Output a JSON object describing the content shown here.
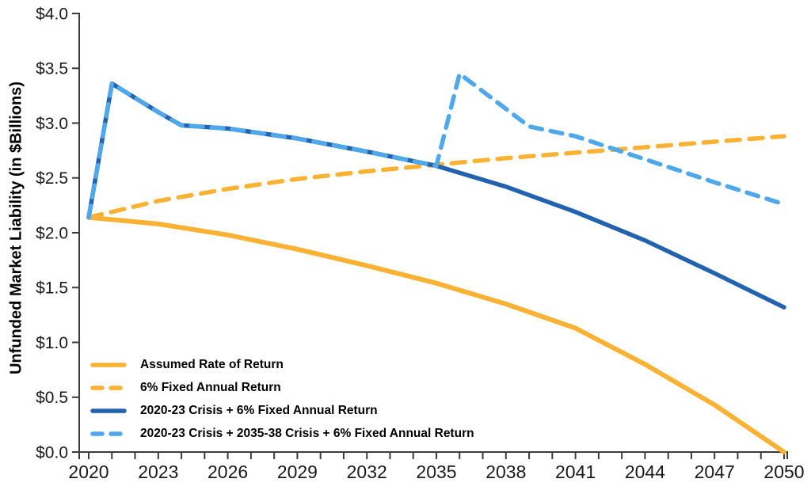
{
  "chart_data": {
    "type": "line",
    "title": "",
    "xlabel": "",
    "ylabel": "Unfunded Market Liability (in $Billions)",
    "x_range": [
      2020,
      2050
    ],
    "ylim": [
      0.0,
      4.0
    ],
    "grid": false,
    "legend_position": "inside lower-left",
    "x_ticks": [
      2020,
      2023,
      2026,
      2029,
      2032,
      2035,
      2038,
      2041,
      2044,
      2047,
      2050
    ],
    "x_tick_labels": [
      "2020",
      "2023",
      "2026",
      "2029",
      "2032",
      "2035",
      "2038",
      "2041",
      "2044",
      "2047",
      "2050"
    ],
    "x_minor_tick_step": 1,
    "y_ticks": [
      0.0,
      0.5,
      1.0,
      1.5,
      2.0,
      2.5,
      3.0,
      3.5,
      4.0
    ],
    "y_tick_labels": [
      "$0.0",
      "$0.5",
      "$1.0",
      "$1.5",
      "$2.0",
      "$2.5",
      "$3.0",
      "$3.5",
      "$4.0"
    ],
    "axis_color": "#3C3C3C",
    "text_color": "#1A1A1A",
    "series": [
      {
        "name": "Assumed Rate of Return",
        "color": "#F9B234",
        "line_style": "solid",
        "points": [
          [
            2020,
            2.14
          ],
          [
            2023,
            2.08
          ],
          [
            2026,
            1.98
          ],
          [
            2029,
            1.85
          ],
          [
            2032,
            1.7
          ],
          [
            2035,
            1.54
          ],
          [
            2038,
            1.35
          ],
          [
            2041,
            1.13
          ],
          [
            2044,
            0.8
          ],
          [
            2047,
            0.43
          ],
          [
            2050,
            0.0
          ]
        ]
      },
      {
        "name": "6% Fixed Annual Return",
        "color": "#F9B234",
        "line_style": "dashed",
        "points": [
          [
            2020,
            2.14
          ],
          [
            2023,
            2.29
          ],
          [
            2026,
            2.4
          ],
          [
            2029,
            2.49
          ],
          [
            2032,
            2.56
          ],
          [
            2035,
            2.62
          ],
          [
            2038,
            2.68
          ],
          [
            2041,
            2.73
          ],
          [
            2044,
            2.78
          ],
          [
            2047,
            2.83
          ],
          [
            2050,
            2.88
          ]
        ]
      },
      {
        "name": "2020-23 Crisis + 6% Fixed Annual Return",
        "color": "#2262AE",
        "line_style": "solid",
        "points": [
          [
            2020,
            2.14
          ],
          [
            2021,
            3.36
          ],
          [
            2022,
            3.23
          ],
          [
            2023,
            3.1
          ],
          [
            2024,
            2.98
          ],
          [
            2026,
            2.95
          ],
          [
            2029,
            2.86
          ],
          [
            2032,
            2.74
          ],
          [
            2035,
            2.61
          ],
          [
            2038,
            2.42
          ],
          [
            2041,
            2.19
          ],
          [
            2044,
            1.93
          ],
          [
            2047,
            1.63
          ],
          [
            2050,
            1.32
          ]
        ]
      },
      {
        "name": "2020-23 Crisis + 2035-38 Crisis + 6% Fixed Annual Return",
        "color": "#4FA8EA",
        "line_style": "dashed",
        "points": [
          [
            2020,
            2.14
          ],
          [
            2021,
            3.36
          ],
          [
            2022,
            3.23
          ],
          [
            2023,
            3.1
          ],
          [
            2024,
            2.98
          ],
          [
            2026,
            2.95
          ],
          [
            2029,
            2.86
          ],
          [
            2032,
            2.74
          ],
          [
            2035,
            2.61
          ],
          [
            2036,
            3.45
          ],
          [
            2037,
            3.29
          ],
          [
            2038,
            3.13
          ],
          [
            2039,
            2.97
          ],
          [
            2041,
            2.88
          ],
          [
            2044,
            2.67
          ],
          [
            2047,
            2.46
          ],
          [
            2050,
            2.26
          ]
        ]
      }
    ]
  }
}
